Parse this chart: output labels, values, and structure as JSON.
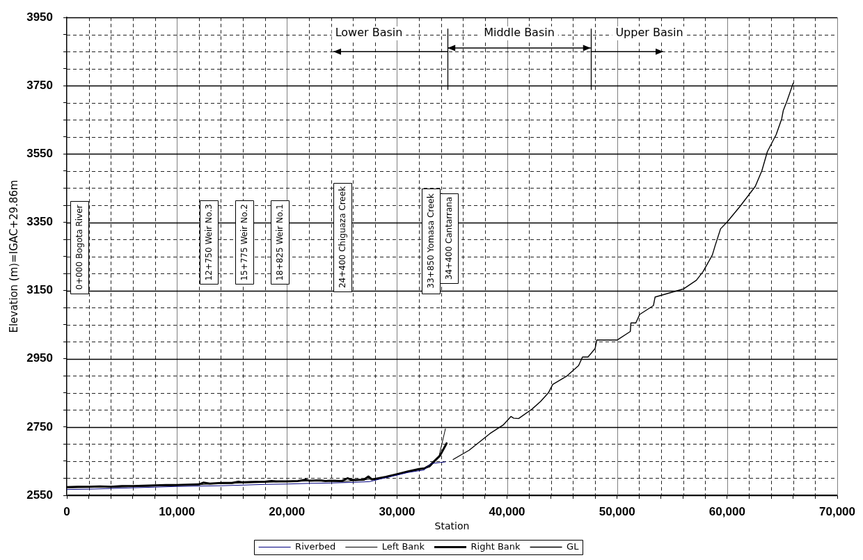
{
  "chart_data": {
    "type": "line",
    "xlabel": "Station",
    "ylabel": "Elevation (m)=IGAC+29.86m",
    "xlim": [
      0,
      70000
    ],
    "ylim": [
      2550,
      3950
    ],
    "xticks": [
      0,
      {
        "value": 2000,
        "label": null
      },
      {
        "value": 4000,
        "label": null
      },
      {
        "value": 6000,
        "label": null
      },
      {
        "value": 8000,
        "label": null
      },
      {
        "value": 10000,
        "label": "10,000"
      },
      {
        "value": 12000,
        "label": null
      },
      {
        "value": 14000,
        "label": null
      },
      {
        "value": 16000,
        "label": null
      },
      {
        "value": 18000,
        "label": null
      },
      {
        "value": 20000,
        "label": "20,000"
      },
      {
        "value": 22000,
        "label": null
      },
      {
        "value": 24000,
        "label": null
      },
      {
        "value": 26000,
        "label": null
      },
      {
        "value": 28000,
        "label": null
      },
      {
        "value": 30000,
        "label": "30,000"
      },
      {
        "value": 32000,
        "label": null
      },
      {
        "value": 34000,
        "label": null
      },
      {
        "value": 36000,
        "label": null
      },
      {
        "value": 38000,
        "label": null
      },
      {
        "value": 40000,
        "label": "40,000"
      },
      {
        "value": 42000,
        "label": null
      },
      {
        "value": 44000,
        "label": null
      },
      {
        "value": 46000,
        "label": null
      },
      {
        "value": 48000,
        "label": null
      },
      {
        "value": 50000,
        "label": "50,000"
      },
      {
        "value": 52000,
        "label": null
      },
      {
        "value": 54000,
        "label": null
      },
      {
        "value": 56000,
        "label": null
      },
      {
        "value": 58000,
        "label": null
      },
      {
        "value": 60000,
        "label": "60,000"
      },
      {
        "value": 62000,
        "label": null
      },
      {
        "value": 64000,
        "label": null
      },
      {
        "value": 66000,
        "label": null
      },
      {
        "value": 68000,
        "label": null
      },
      {
        "value": 70000,
        "label": "70,000"
      }
    ],
    "yticks": [
      2550,
      {
        "value": 2600,
        "label": null
      },
      {
        "value": 2650,
        "label": null
      },
      {
        "value": 2700,
        "label": null
      },
      2750,
      {
        "value": 2800,
        "label": null
      },
      {
        "value": 2850,
        "label": null
      },
      {
        "value": 2900,
        "label": null
      },
      2950,
      {
        "value": 3000,
        "label": null
      },
      {
        "value": 3050,
        "label": null
      },
      {
        "value": 3100,
        "label": null
      },
      3150,
      {
        "value": 3200,
        "label": null
      },
      {
        "value": 3250,
        "label": null
      },
      {
        "value": 3300,
        "label": null
      },
      3350,
      {
        "value": 3400,
        "label": null
      },
      {
        "value": 3450,
        "label": null
      },
      {
        "value": 3500,
        "label": null
      },
      3550,
      {
        "value": 3600,
        "label": null
      },
      {
        "value": 3650,
        "label": null
      },
      {
        "value": 3700,
        "label": null
      },
      3750,
      {
        "value": 3800,
        "label": null
      },
      {
        "value": 3850,
        "label": null
      },
      {
        "value": 3900,
        "label": null
      },
      3950
    ],
    "grid": true,
    "legend": "bottom",
    "series": [
      {
        "name": "Riverbed",
        "color": "#000080",
        "x": [
          0,
          2000,
          4000,
          6000,
          8000,
          10000,
          12000,
          14000,
          16000,
          18000,
          20000,
          22000,
          24000,
          26000,
          27500,
          28500,
          30000,
          31000,
          32000,
          32450,
          33100,
          34400
        ],
        "values": [
          2567,
          2568,
          2570,
          2572,
          2574,
          2576,
          2577,
          2578,
          2580,
          2582,
          2583,
          2585,
          2586,
          2588,
          2590,
          2598,
          2609,
          2617,
          2622,
          2624,
          2643,
          2648
        ]
      },
      {
        "name": "Left Bank",
        "color": "#000000",
        "x": [
          0,
          1500,
          3000,
          4500,
          6000,
          7500,
          9000,
          10500,
          12000,
          13500,
          15000,
          16500,
          18000,
          19500,
          21000,
          22500,
          24000,
          25000,
          26500,
          27500,
          28500,
          30000,
          31000,
          32000,
          33000,
          33800,
          34400
        ],
        "values": [
          2572,
          2573,
          2574,
          2574,
          2576,
          2577,
          2578,
          2580,
          2581,
          2584,
          2585,
          2587,
          2588,
          2590,
          2591,
          2592,
          2591,
          2590,
          2594,
          2597,
          2599,
          2611,
          2618,
          2625,
          2633,
          2662,
          2745
        ]
      },
      {
        "name": "Right Bank",
        "color": "#000000",
        "x": [
          0,
          1000,
          2000,
          3000,
          4000,
          5000,
          6000,
          7000,
          8000,
          9000,
          10000,
          11000,
          12000,
          12400,
          13000,
          14000,
          15000,
          15600,
          16000,
          17000,
          18000,
          18600,
          19000,
          20000,
          21000,
          21700,
          22000,
          23000,
          23500,
          24000,
          25000,
          25500,
          25800,
          26200,
          27000,
          27400,
          27700,
          28000,
          29000,
          30000,
          31000,
          32000,
          32500,
          33000,
          33900,
          34500
        ],
        "values": [
          2574,
          2575,
          2575,
          2576,
          2575,
          2577,
          2577,
          2578,
          2579,
          2580,
          2580,
          2581,
          2582,
          2587,
          2584,
          2586,
          2586,
          2590,
          2588,
          2589,
          2590,
          2592,
          2591,
          2591,
          2592,
          2596,
          2593,
          2594,
          2592,
          2593,
          2592,
          2600,
          2596,
          2595,
          2596,
          2605,
          2597,
          2598,
          2604,
          2612,
          2620,
          2627,
          2629,
          2638,
          2666,
          2702
        ]
      },
      {
        "name": "GL",
        "color": "#000000",
        "x": [
          35100,
          36550,
          38450,
          39650,
          40350,
          40600,
          41050,
          42250,
          43050,
          43750,
          44150,
          45450,
          46500,
          46850,
          47350,
          48000,
          48150,
          50000,
          51200,
          51250,
          51700,
          52050,
          53300,
          53450,
          56050,
          57200,
          57800,
          58650,
          58900,
          59400,
          60000,
          61150,
          62550,
          63150,
          63650,
          64450,
          64950,
          65100,
          65450,
          66000
        ],
        "values": [
          2655,
          2682,
          2731,
          2756,
          2781,
          2776,
          2775,
          2802,
          2825,
          2850,
          2875,
          2900,
          2930,
          2955,
          2955,
          2980,
          3005,
          3005,
          3030,
          3055,
          3055,
          3080,
          3106,
          3131,
          3155,
          3180,
          3205,
          3254,
          3281,
          3331,
          3351,
          3396,
          3455,
          3501,
          3557,
          3607,
          3653,
          3678,
          3707,
          3758
        ]
      }
    ],
    "ref_lines": [
      {
        "axis": "x",
        "value": 34600
      },
      {
        "axis": "x",
        "value": 47600
      }
    ],
    "annotations": [
      "0+000 Bogota River",
      "12+750 Weir No.3",
      "15+775 Weir No.2",
      "18+825 Weir No.1",
      "24+400 Chiguaza Creek",
      "33+850 Yomasa Creek",
      "34+400 Cantarrana",
      {
        "text": "Lower Basin",
        "x": 34600,
        "y": 3850
      },
      "Middle Basin",
      {
        "text": "Upper Basin",
        "x": 47600,
        "y": 3850
      }
    ]
  }
}
